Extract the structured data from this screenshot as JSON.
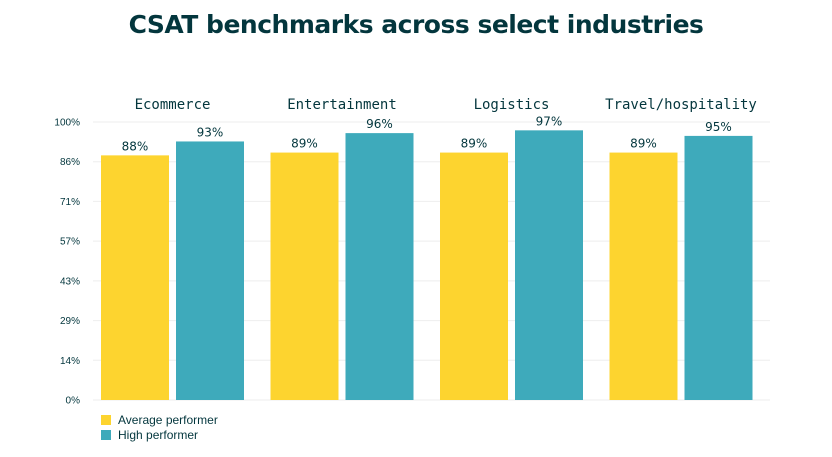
{
  "chart_data": {
    "type": "bar",
    "title": "CSAT benchmarks across select industries",
    "categories": [
      "Ecommerce",
      "Entertainment",
      "Logistics",
      "Travel/hospitality"
    ],
    "series": [
      {
        "name": "Average performer",
        "color": "#fdd42f",
        "values": [
          88,
          89,
          89,
          89
        ],
        "labels": [
          "88%",
          "89%",
          "89%",
          "89%"
        ]
      },
      {
        "name": "High performer",
        "color": "#3eaabb",
        "values": [
          93,
          96,
          97,
          95
        ],
        "labels": [
          "93%",
          "96%",
          "97%",
          "95%"
        ]
      }
    ],
    "yticks": [
      {
        "value": 0,
        "label": "0%"
      },
      {
        "value": 14.29,
        "label": "14%"
      },
      {
        "value": 28.57,
        "label": "29%"
      },
      {
        "value": 42.86,
        "label": "43%"
      },
      {
        "value": 57.14,
        "label": "57%"
      },
      {
        "value": 71.43,
        "label": "71%"
      },
      {
        "value": 85.71,
        "label": "86%"
      },
      {
        "value": 100,
        "label": "100%"
      }
    ],
    "ylim": [
      0,
      100
    ],
    "grid": true,
    "legend_position": "bottom-left",
    "xlabel": "",
    "ylabel": ""
  }
}
